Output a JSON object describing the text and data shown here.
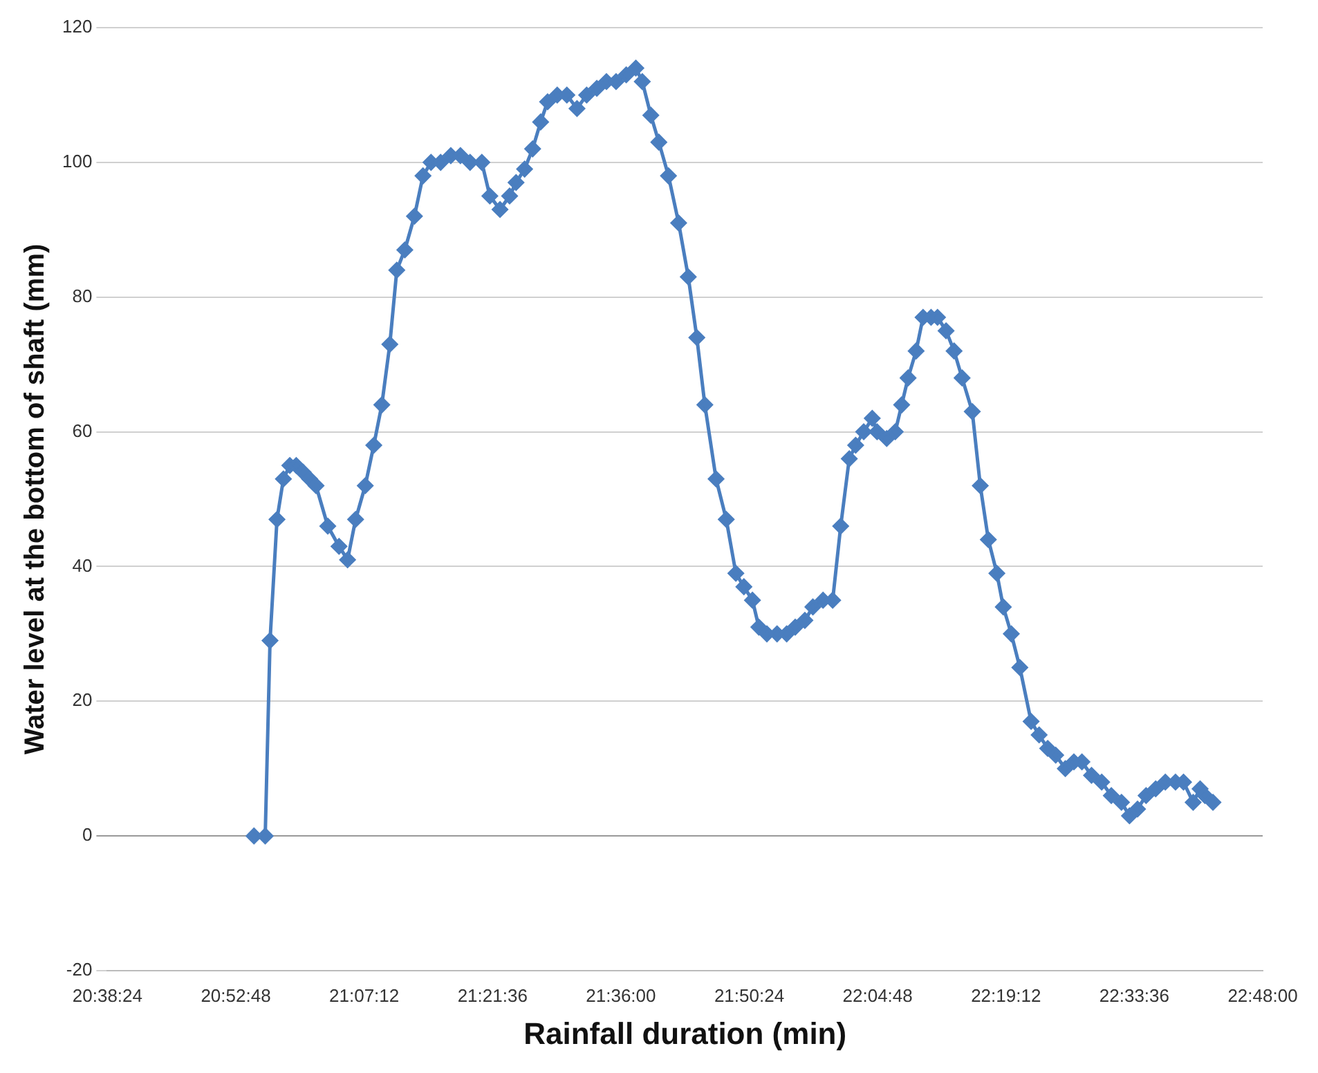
{
  "chart_data": {
    "type": "line",
    "xlabel": "Rainfall duration (min)",
    "ylabel": "Water level at the bottom of shaft (mm)",
    "marker": "diamond",
    "line_style": "solid",
    "grid": "y",
    "legend": false,
    "xlim": [
      20.64,
      22.8
    ],
    "xticks": [
      {
        "value": 20.64,
        "label": "20:38:24"
      },
      {
        "value": 20.88,
        "label": "20:52:48"
      },
      {
        "value": 21.12,
        "label": "21:07:12"
      },
      {
        "value": 21.36,
        "label": "21:21:36"
      },
      {
        "value": 21.6,
        "label": "21:36:00"
      },
      {
        "value": 21.84,
        "label": "21:50:24"
      },
      {
        "value": 22.08,
        "label": "22:04:48"
      },
      {
        "value": 22.32,
        "label": "22:19:12"
      },
      {
        "value": 22.56,
        "label": "22:33:36"
      },
      {
        "value": 22.8,
        "label": "22:48:00"
      }
    ],
    "ylim": [
      -20,
      120
    ],
    "yticks": [
      -20,
      0,
      20,
      40,
      60,
      80,
      100,
      120
    ],
    "series": [
      {
        "color": "#4a7ebf",
        "x": [
          20.914,
          20.935,
          20.944,
          20.957,
          20.969,
          20.981,
          20.993,
          21.006,
          21.018,
          21.03,
          21.052,
          21.073,
          21.089,
          21.104,
          21.122,
          21.138,
          21.153,
          21.168,
          21.181,
          21.196,
          21.214,
          21.23,
          21.245,
          21.263,
          21.282,
          21.3,
          21.318,
          21.34,
          21.355,
          21.374,
          21.392,
          21.404,
          21.42,
          21.435,
          21.45,
          21.463,
          21.481,
          21.499,
          21.518,
          21.536,
          21.555,
          21.573,
          21.591,
          21.61,
          21.628,
          21.64,
          21.656,
          21.671,
          21.689,
          21.708,
          21.726,
          21.742,
          21.757,
          21.778,
          21.797,
          21.815,
          21.83,
          21.846,
          21.858,
          21.873,
          21.892,
          21.91,
          21.926,
          21.944,
          21.959,
          21.978,
          21.996,
          22.011,
          22.027,
          22.039,
          22.054,
          22.07,
          22.079,
          22.097,
          22.113,
          22.125,
          22.137,
          22.152,
          22.165,
          22.18,
          22.192,
          22.208,
          22.223,
          22.238,
          22.257,
          22.272,
          22.287,
          22.303,
          22.315,
          22.33,
          22.346,
          22.367,
          22.382,
          22.398,
          22.413,
          22.431,
          22.447,
          22.462,
          22.48,
          22.499,
          22.517,
          22.536,
          22.551,
          22.566,
          22.582,
          22.6,
          22.618,
          22.637,
          22.652,
          22.67,
          22.683,
          22.692,
          22.707
        ],
        "values": [
          0,
          0,
          29,
          47,
          53,
          55,
          55,
          54,
          53,
          52,
          46,
          43,
          41,
          47,
          52,
          58,
          64,
          73,
          84,
          87,
          92,
          98,
          100,
          100,
          101,
          101,
          100,
          100,
          95,
          93,
          95,
          97,
          99,
          102,
          106,
          109,
          110,
          110,
          108,
          110,
          111,
          112,
          112,
          113,
          114,
          112,
          107,
          103,
          98,
          91,
          83,
          74,
          64,
          53,
          47,
          39,
          37,
          35,
          31,
          30,
          30,
          30,
          31,
          32,
          34,
          35,
          35,
          46,
          56,
          58,
          60,
          62,
          60,
          59,
          60,
          64,
          68,
          72,
          77,
          77,
          77,
          75,
          72,
          68,
          63,
          52,
          44,
          39,
          34,
          30,
          25,
          17,
          15,
          13,
          12,
          10,
          11,
          11,
          9,
          8,
          6,
          5,
          3,
          4,
          6,
          7,
          8,
          8,
          8,
          5,
          7,
          6,
          5
        ]
      }
    ]
  }
}
